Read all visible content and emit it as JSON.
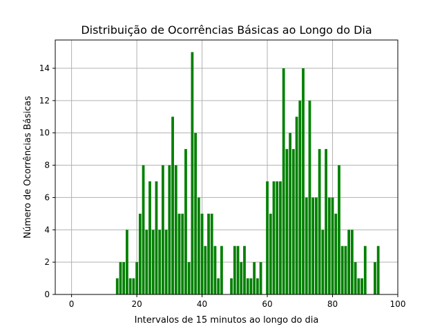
{
  "chart_data": {
    "type": "bar",
    "title": "Distribuição de Ocorrências Básicas ao Longo do Dia",
    "xlabel": "Intervalos de 15 minutos ao longo do dia",
    "ylabel": "Número de Ocorrências Básicas",
    "xlim": [
      -5,
      100
    ],
    "ylim": [
      0,
      15.75
    ],
    "xticks": [
      0,
      20,
      40,
      60,
      80,
      100
    ],
    "yticks": [
      0,
      2,
      4,
      6,
      8,
      10,
      12,
      14
    ],
    "grid": true,
    "bar_color": "#008000",
    "x": [
      14,
      15,
      16,
      17,
      18,
      19,
      20,
      21,
      22,
      23,
      24,
      25,
      26,
      27,
      28,
      29,
      30,
      31,
      32,
      33,
      34,
      35,
      36,
      37,
      38,
      39,
      40,
      41,
      42,
      43,
      44,
      45,
      46,
      49,
      50,
      51,
      52,
      53,
      54,
      55,
      56,
      57,
      58,
      60,
      61,
      62,
      63,
      64,
      65,
      66,
      67,
      68,
      69,
      70,
      71,
      72,
      73,
      74,
      75,
      76,
      77,
      78,
      79,
      80,
      81,
      82,
      83,
      84,
      85,
      86,
      87,
      88,
      89,
      90,
      93,
      94
    ],
    "values": [
      1,
      2,
      2,
      4,
      1,
      1,
      2,
      5,
      8,
      4,
      7,
      4,
      7,
      4,
      8,
      4,
      8,
      11,
      8,
      5,
      5,
      9,
      2,
      15,
      10,
      6,
      5,
      3,
      5,
      5,
      3,
      1,
      3,
      1,
      3,
      3,
      2,
      3,
      1,
      1,
      2,
      1,
      2,
      7,
      5,
      7,
      7,
      7,
      14,
      9,
      10,
      9,
      11,
      12,
      14,
      6,
      12,
      6,
      6,
      9,
      4,
      9,
      6,
      6,
      5,
      8,
      3,
      3,
      4,
      4,
      2,
      1,
      1,
      3,
      2,
      3
    ]
  }
}
